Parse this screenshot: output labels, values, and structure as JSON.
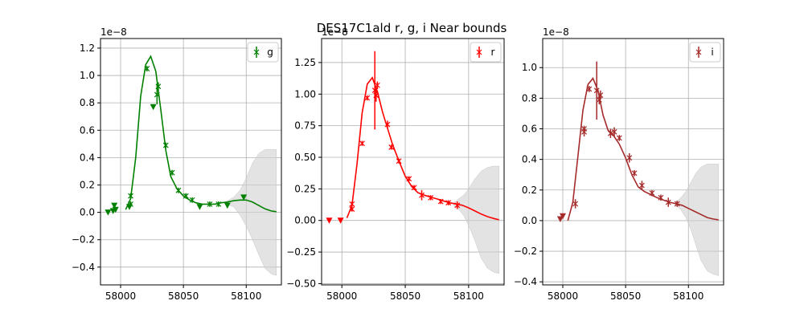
{
  "title": "DES17C1ald  r, g, i Near bounds",
  "chart_data": [
    {
      "type": "line",
      "band": "g",
      "color": "#008000",
      "legend": "g",
      "legend_position": "top-right",
      "grid": true,
      "offset_label": "1e−8",
      "xlim": [
        57984,
        58128
      ],
      "ylim": [
        -0.53,
        1.27
      ],
      "xticks": [
        58000,
        58050,
        58100
      ],
      "xtick_labels": [
        "58000",
        "58050",
        "58100"
      ],
      "yticks": [
        -0.4,
        -0.2,
        0.0,
        0.2,
        0.4,
        0.6,
        0.8,
        1.0,
        1.2
      ],
      "ytick_labels": [
        "−0.4",
        "−0.2",
        "0.0",
        "0.2",
        "0.4",
        "0.6",
        "0.8",
        "1.0",
        "1.2"
      ],
      "model_x": [
        58004,
        58008,
        58012,
        58016,
        58020,
        58024,
        58028,
        58032,
        58036,
        58040,
        58045,
        58050,
        58055,
        58060,
        58065,
        58070,
        58075,
        58080,
        58085,
        58090,
        58095,
        58100,
        58105,
        58110,
        58115,
        58120,
        58124
      ],
      "model_y": [
        0.02,
        0.1,
        0.4,
        0.85,
        1.08,
        1.14,
        1.03,
        0.75,
        0.45,
        0.26,
        0.17,
        0.12,
        0.09,
        0.07,
        0.06,
        0.06,
        0.06,
        0.07,
        0.075,
        0.085,
        0.09,
        0.09,
        0.075,
        0.05,
        0.025,
        0.01,
        0.005
      ],
      "band_x": [
        58084,
        58090,
        58095,
        58100,
        58105,
        58110,
        58115,
        58120,
        58124
      ],
      "band_lower": [
        0.06,
        0.04,
        -0.02,
        -0.1,
        -0.2,
        -0.31,
        -0.41,
        -0.45,
        -0.46
      ],
      "band_upper": [
        0.08,
        0.11,
        0.16,
        0.25,
        0.36,
        0.43,
        0.46,
        0.46,
        0.46
      ],
      "points": [
        {
          "x": 58008,
          "y": 0.06,
          "err": 0.02
        },
        {
          "x": 58008,
          "y": 0.12,
          "err": 0.02
        },
        {
          "x": 58021,
          "y": 1.05,
          "err": 0.02
        },
        {
          "x": 58029,
          "y": 0.86,
          "err": 0.07
        },
        {
          "x": 58030,
          "y": 0.92,
          "err": 0.03
        },
        {
          "x": 58036,
          "y": 0.49,
          "err": 0.02
        },
        {
          "x": 58041,
          "y": 0.29,
          "err": 0.02
        },
        {
          "x": 58046,
          "y": 0.16,
          "err": 0.02
        },
        {
          "x": 58052,
          "y": 0.12,
          "err": 0.02
        },
        {
          "x": 58057,
          "y": 0.09,
          "err": 0.02
        },
        {
          "x": 58071,
          "y": 0.06,
          "err": 0.02
        },
        {
          "x": 58078,
          "y": 0.06,
          "err": 0.02
        }
      ],
      "upper_limits": [
        {
          "x": 57990,
          "y": 0.0
        },
        {
          "x": 57994,
          "y": 0.01
        },
        {
          "x": 57995,
          "y": 0.05
        },
        {
          "x": 57996,
          "y": 0.02
        },
        {
          "x": 58007,
          "y": 0.04
        },
        {
          "x": 58026,
          "y": 0.77
        },
        {
          "x": 58063,
          "y": 0.04
        },
        {
          "x": 58085,
          "y": 0.05
        },
        {
          "x": 58098,
          "y": 0.11
        }
      ]
    },
    {
      "type": "line",
      "band": "r",
      "color": "#ff0000",
      "legend": "r",
      "legend_position": "top-right",
      "grid": true,
      "offset_label": "1e−8",
      "xlim": [
        57984,
        58128
      ],
      "ylim": [
        -0.51,
        1.44
      ],
      "xticks": [
        58000,
        58050,
        58100
      ],
      "xtick_labels": [
        "58000",
        "58050",
        "58100"
      ],
      "yticks": [
        -0.5,
        -0.25,
        0.0,
        0.25,
        0.5,
        0.75,
        1.0,
        1.25
      ],
      "ytick_labels": [
        "−0.50",
        "−0.25",
        "0.00",
        "0.25",
        "0.50",
        "0.75",
        "1.00",
        "1.25"
      ],
      "model_x": [
        58004,
        58008,
        58012,
        58016,
        58020,
        58024,
        58028,
        58032,
        58036,
        58040,
        58045,
        58050,
        58055,
        58060,
        58065,
        58070,
        58075,
        58080,
        58085,
        58090,
        58095,
        58100,
        58105,
        58110,
        58115,
        58120,
        58124
      ],
      "model_y": [
        0.02,
        0.12,
        0.45,
        0.85,
        1.08,
        1.13,
        1.02,
        0.86,
        0.73,
        0.6,
        0.47,
        0.35,
        0.27,
        0.22,
        0.2,
        0.185,
        0.17,
        0.155,
        0.14,
        0.13,
        0.12,
        0.1,
        0.075,
        0.05,
        0.03,
        0.015,
        0.005
      ],
      "band_x": [
        58088,
        58092,
        58096,
        58100,
        58105,
        58110,
        58115,
        58120,
        58124
      ],
      "band_lower": [
        0.12,
        0.09,
        0.04,
        -0.04,
        -0.16,
        -0.3,
        -0.38,
        -0.41,
        -0.42
      ],
      "band_upper": [
        0.14,
        0.17,
        0.2,
        0.25,
        0.33,
        0.39,
        0.42,
        0.43,
        0.43
      ],
      "points": [
        {
          "x": 58008,
          "y": 0.09,
          "err": 0.02
        },
        {
          "x": 58008,
          "y": 0.13,
          "err": 0.02
        },
        {
          "x": 58016,
          "y": 0.61,
          "err": 0.02
        },
        {
          "x": 58020,
          "y": 0.97,
          "err": 0.02
        },
        {
          "x": 58026,
          "y": 1.03,
          "err": 0.31
        },
        {
          "x": 58027,
          "y": 0.99,
          "err": 0.05
        },
        {
          "x": 58028,
          "y": 1.07,
          "err": 0.03
        },
        {
          "x": 58036,
          "y": 0.76,
          "err": 0.03
        },
        {
          "x": 58039,
          "y": 0.58,
          "err": 0.02
        },
        {
          "x": 58045,
          "y": 0.47,
          "err": 0.02
        },
        {
          "x": 58053,
          "y": 0.33,
          "err": 0.02
        },
        {
          "x": 58057,
          "y": 0.26,
          "err": 0.02
        },
        {
          "x": 58063,
          "y": 0.2,
          "err": 0.04
        },
        {
          "x": 58070,
          "y": 0.18,
          "err": 0.02
        },
        {
          "x": 58078,
          "y": 0.15,
          "err": 0.02
        },
        {
          "x": 58084,
          "y": 0.14,
          "err": 0.02
        },
        {
          "x": 58091,
          "y": 0.12,
          "err": 0.03
        }
      ],
      "upper_limits": [
        {
          "x": 57990,
          "y": 0.0
        },
        {
          "x": 57999,
          "y": 0.0
        }
      ]
    },
    {
      "type": "line",
      "band": "i",
      "color": "#a52a2a",
      "legend": "i",
      "legend_position": "top-right",
      "grid": true,
      "offset_label": "1e−8",
      "xlim": [
        57984,
        58128
      ],
      "ylim": [
        -0.42,
        1.19
      ],
      "xticks": [
        58000,
        58050,
        58100
      ],
      "xtick_labels": [
        "58000",
        "58050",
        "58100"
      ],
      "yticks": [
        -0.4,
        -0.2,
        0.0,
        0.2,
        0.4,
        0.6,
        0.8,
        1.0
      ],
      "ytick_labels": [
        "−0.4",
        "−0.2",
        "0.0",
        "0.2",
        "0.4",
        "0.6",
        "0.8",
        "1.0"
      ],
      "model_x": [
        58004,
        58008,
        58012,
        58016,
        58020,
        58024,
        58028,
        58032,
        58036,
        58040,
        58045,
        58050,
        58055,
        58060,
        58065,
        58070,
        58075,
        58080,
        58085,
        58090,
        58095,
        58100,
        58105,
        58110,
        58115,
        58120,
        58124
      ],
      "model_y": [
        0.0,
        0.12,
        0.42,
        0.72,
        0.89,
        0.93,
        0.85,
        0.69,
        0.59,
        0.56,
        0.5,
        0.41,
        0.3,
        0.22,
        0.19,
        0.17,
        0.15,
        0.135,
        0.12,
        0.11,
        0.1,
        0.08,
        0.06,
        0.04,
        0.02,
        0.01,
        0.005
      ],
      "band_x": [
        58090,
        58094,
        58098,
        58102,
        58106,
        58110,
        58115,
        58120,
        58124
      ],
      "band_lower": [
        0.1,
        0.07,
        0.02,
        -0.06,
        -0.16,
        -0.26,
        -0.33,
        -0.35,
        -0.36
      ],
      "band_upper": [
        0.12,
        0.15,
        0.19,
        0.25,
        0.31,
        0.35,
        0.37,
        0.37,
        0.37
      ],
      "points": [
        {
          "x": 58010,
          "y": 0.11,
          "err": 0.03
        },
        {
          "x": 58017,
          "y": 0.58,
          "err": 0.03
        },
        {
          "x": 58017,
          "y": 0.6,
          "err": 0.02
        },
        {
          "x": 58021,
          "y": 0.86,
          "err": 0.02
        },
        {
          "x": 58027,
          "y": 0.85,
          "err": 0.19
        },
        {
          "x": 58029,
          "y": 0.79,
          "err": 0.03
        },
        {
          "x": 58030,
          "y": 0.82,
          "err": 0.03
        },
        {
          "x": 58038,
          "y": 0.57,
          "err": 0.03
        },
        {
          "x": 58041,
          "y": 0.58,
          "err": 0.03
        },
        {
          "x": 58045,
          "y": 0.54,
          "err": 0.02
        },
        {
          "x": 58053,
          "y": 0.41,
          "err": 0.03
        },
        {
          "x": 58057,
          "y": 0.31,
          "err": 0.02
        },
        {
          "x": 58063,
          "y": 0.23,
          "err": 0.03
        },
        {
          "x": 58071,
          "y": 0.18,
          "err": 0.02
        },
        {
          "x": 58078,
          "y": 0.15,
          "err": 0.02
        },
        {
          "x": 58084,
          "y": 0.12,
          "err": 0.03
        },
        {
          "x": 58091,
          "y": 0.11,
          "err": 0.02
        }
      ],
      "upper_limits": [
        {
          "x": 57998,
          "y": 0.01
        },
        {
          "x": 58000,
          "y": 0.03
        }
      ]
    }
  ]
}
